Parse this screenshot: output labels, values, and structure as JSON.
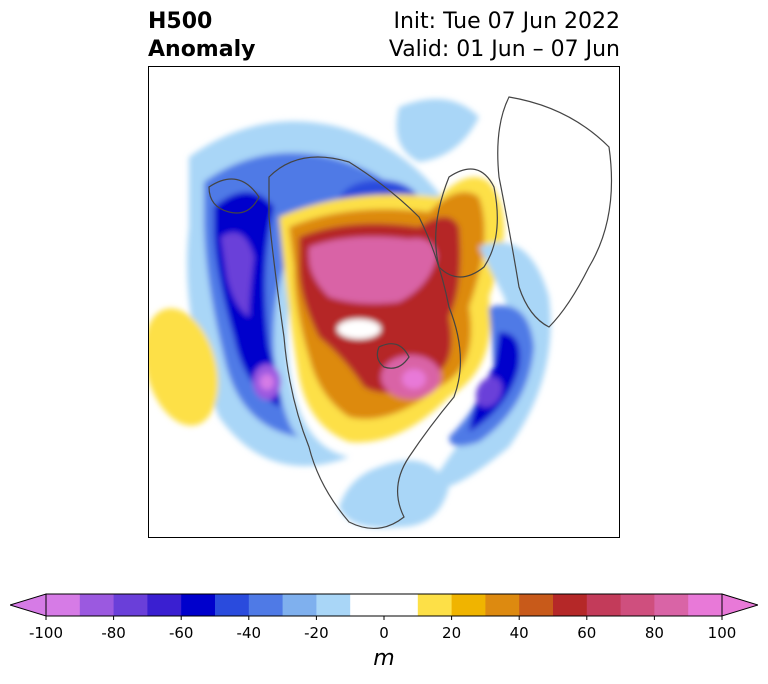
{
  "title": {
    "left_line1": "H500",
    "left_line2": "Anomaly",
    "right_line1": "Init: Tue 07 Jun 2022",
    "right_line2": "Valid: 01 Jun – 07 Jun"
  },
  "colorbar": {
    "unit": "m",
    "range": [
      -100,
      100
    ],
    "step": 10,
    "ticks": [
      {
        "label": "-100",
        "value": -100
      },
      {
        "label": "-80",
        "value": -80
      },
      {
        "label": "-60",
        "value": -60
      },
      {
        "label": "-40",
        "value": -40
      },
      {
        "label": "-20",
        "value": -20
      },
      {
        "label": "0",
        "value": 0
      },
      {
        "label": "20",
        "value": 20
      },
      {
        "label": "40",
        "value": 40
      },
      {
        "label": "60",
        "value": 60
      },
      {
        "label": "80",
        "value": 80
      },
      {
        "label": "100",
        "value": 100
      }
    ],
    "colors": [
      "#d67be6",
      "#9b59e0",
      "#6a3fd9",
      "#3a1fd1",
      "#0000cc",
      "#2a4bdd",
      "#4f7ae6",
      "#7fb0ee",
      "#a9d6f7",
      "#ffffff",
      "#ffffff",
      "#fde047",
      "#f0b400",
      "#dd8a10",
      "#c85a1a",
      "#b52828",
      "#c33b5a",
      "#cf4f7e",
      "#d964a6",
      "#e879d8"
    ],
    "under_color": "#d67be6",
    "over_color": "#e879d8"
  }
}
